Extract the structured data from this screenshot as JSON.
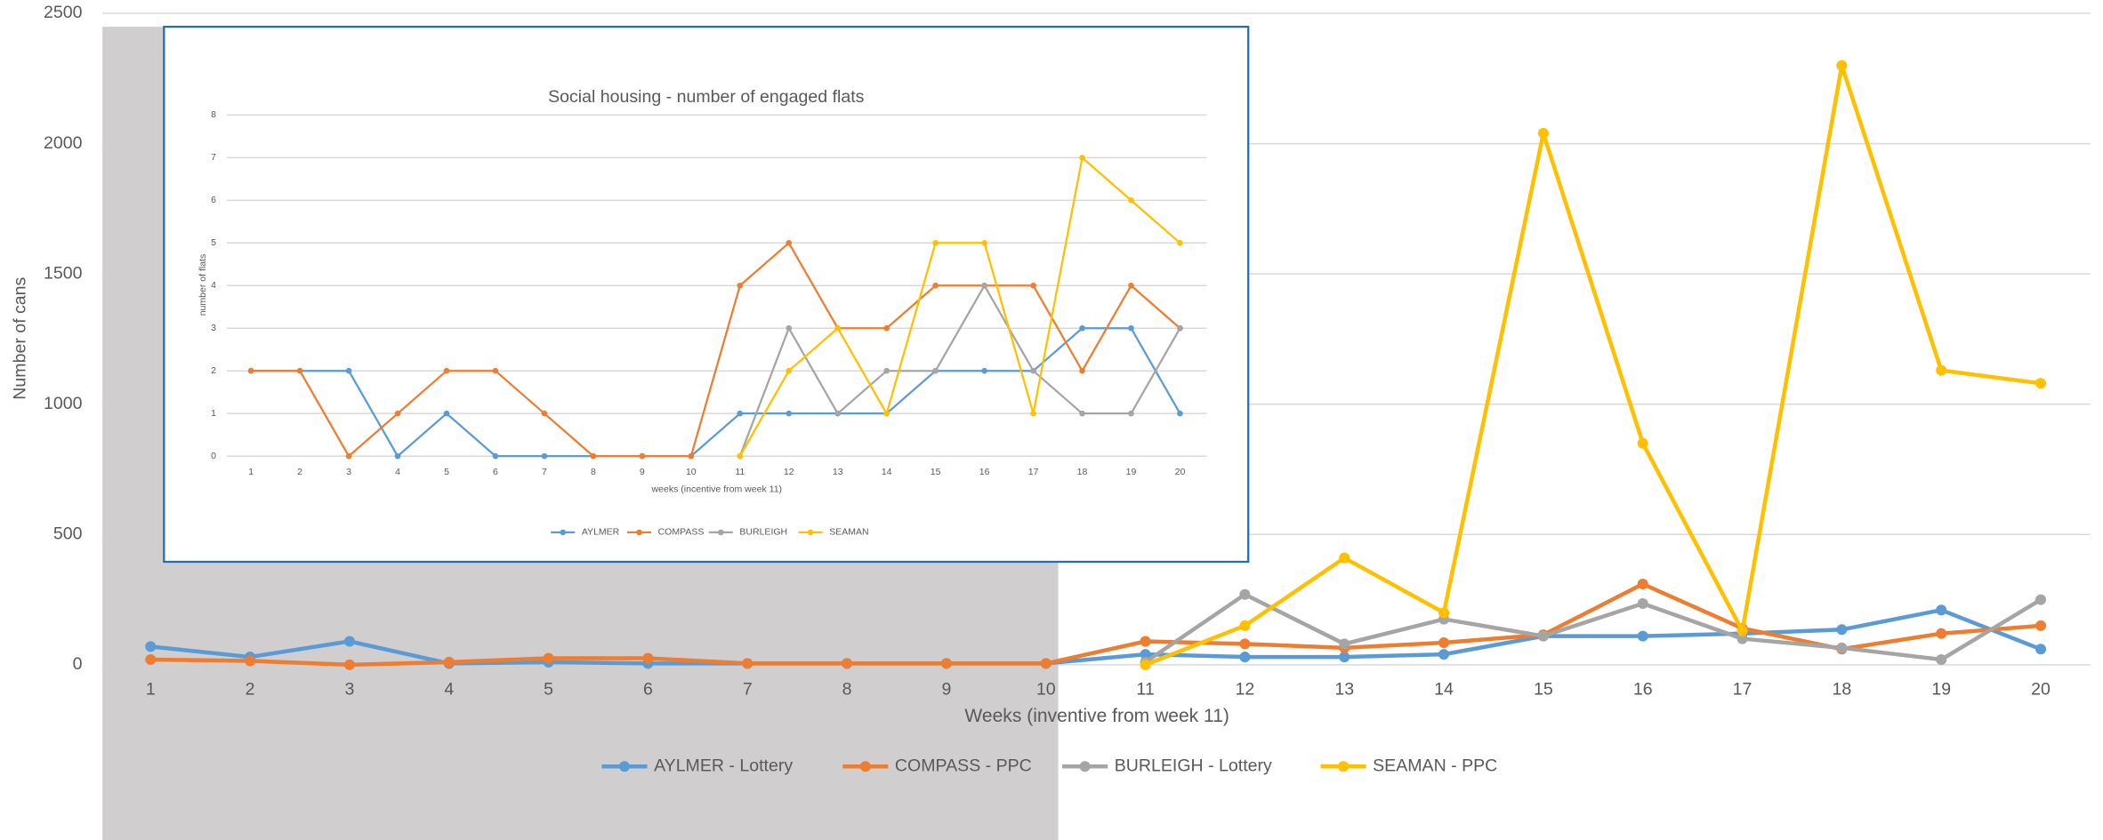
{
  "chart_data": [
    {
      "type": "line",
      "y_label": "Number of cans",
      "x_label": "Weeks (inventive from week 11)",
      "categories": [
        1,
        2,
        3,
        4,
        5,
        6,
        7,
        8,
        9,
        10,
        11,
        12,
        13,
        14,
        15,
        16,
        17,
        18,
        19,
        20
      ],
      "ylim": [
        0,
        2500
      ],
      "yticks": [
        0,
        500,
        1000,
        1500,
        2000,
        2500
      ],
      "grid": true,
      "legend": "bottom",
      "series": [
        {
          "name": "AYLMER - Lottery",
          "color": "#5b9bd5",
          "values": [
            70,
            30,
            90,
            5,
            10,
            5,
            5,
            5,
            5,
            5,
            40,
            30,
            30,
            40,
            110,
            110,
            120,
            135,
            210,
            60
          ]
        },
        {
          "name": "COMPASS - PPC",
          "color": "#ed7d31",
          "values": [
            20,
            15,
            0,
            10,
            25,
            25,
            5,
            5,
            5,
            5,
            90,
            80,
            65,
            85,
            115,
            310,
            140,
            60,
            120,
            150
          ]
        },
        {
          "name": "BURLEIGH - Lottery",
          "color": "#a5a5a5",
          "values": [
            null,
            null,
            null,
            null,
            null,
            null,
            null,
            null,
            null,
            null,
            10,
            270,
            80,
            175,
            110,
            235,
            100,
            65,
            20,
            250
          ]
        },
        {
          "name": "SEAMAN - PPC",
          "color": "#ffc000",
          "values": [
            null,
            null,
            null,
            null,
            null,
            null,
            null,
            null,
            null,
            null,
            0,
            150,
            410,
            200,
            2040,
            850,
            130,
            2300,
            1130,
            1080
          ]
        }
      ]
    },
    {
      "type": "line",
      "title": "Social housing - number of engaged flats",
      "y_label": "number of flats",
      "x_label": "weeks (incentive from week 11)",
      "categories": [
        1,
        2,
        3,
        4,
        5,
        6,
        7,
        8,
        9,
        10,
        11,
        12,
        13,
        14,
        15,
        16,
        17,
        18,
        19,
        20
      ],
      "ylim": [
        0,
        8
      ],
      "yticks": [
        0,
        1,
        2,
        3,
        4,
        5,
        6,
        7,
        8
      ],
      "grid": true,
      "legend": "bottom",
      "series": [
        {
          "name": "AYLMER",
          "color": "#5b9bd5",
          "values": [
            2,
            2,
            2,
            0,
            1,
            0,
            0,
            0,
            0,
            0,
            1,
            1,
            1,
            1,
            2,
            2,
            2,
            3,
            3,
            1
          ]
        },
        {
          "name": "COMPASS",
          "color": "#ed7d31",
          "values": [
            2,
            2,
            0,
            1,
            2,
            2,
            1,
            0,
            0,
            0,
            4,
            5,
            3,
            3,
            4,
            4,
            4,
            2,
            4,
            3
          ]
        },
        {
          "name": "BURLEIGH",
          "color": "#a5a5a5",
          "values": [
            null,
            null,
            null,
            null,
            null,
            null,
            null,
            null,
            null,
            null,
            0,
            3,
            1,
            2,
            2,
            4,
            2,
            1,
            1,
            3
          ]
        },
        {
          "name": "SEAMAN",
          "color": "#ffc000",
          "values": [
            null,
            null,
            null,
            null,
            null,
            null,
            null,
            null,
            null,
            null,
            0,
            2,
            3,
            1,
            5,
            5,
            1,
            7,
            6,
            5
          ]
        }
      ]
    }
  ]
}
